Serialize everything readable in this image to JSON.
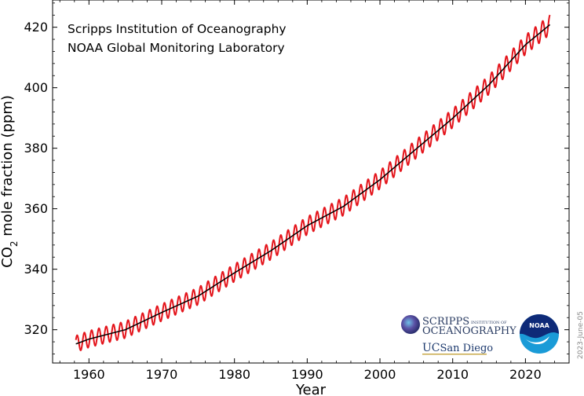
{
  "chart_data": {
    "type": "line",
    "xlabel": "Year",
    "ylabel_prefix": "CO",
    "ylabel_subscript": "2",
    "ylabel_suffix": " mole fraction (ppm)",
    "xlim": [
      1955,
      2026
    ],
    "ylim": [
      309,
      429
    ],
    "x_ticks": [
      1960,
      1970,
      1980,
      1990,
      2000,
      2010,
      2020
    ],
    "y_ticks": [
      320,
      340,
      360,
      380,
      400,
      420
    ],
    "grid": false,
    "series": [
      {
        "role": "monthly-mean",
        "color": "#e4141b",
        "x_range": [
          1958.2,
          2023.4
        ],
        "seasonal_amplitude_ppm": 3.2
      },
      {
        "role": "seasonally-adjusted-trend",
        "color": "#000000",
        "x": [
          1958.2,
          1960,
          1965,
          1970,
          1975,
          1980,
          1985,
          1990,
          1995,
          2000,
          2005,
          2010,
          2015,
          2020,
          2023.4
        ],
        "y": [
          315.3,
          316.9,
          320.0,
          325.7,
          331.1,
          338.8,
          346.1,
          354.4,
          360.8,
          369.6,
          379.8,
          389.9,
          401.0,
          414.2,
          420.9
        ]
      }
    ],
    "annotations": [
      "Scripps Institution of Oceanography",
      "NOAA Global Monitoring Laboratory"
    ],
    "datestamp": "2023-June-05"
  },
  "logos": {
    "scripps_line1": "SCRIPPS",
    "scripps_line1_small": "INSTITUTION OF",
    "scripps_line2": "OCEANOGRAPHY",
    "ucsd_uc": "UC",
    "ucsd_rest": "San Diego",
    "noaa": "NOAA"
  }
}
